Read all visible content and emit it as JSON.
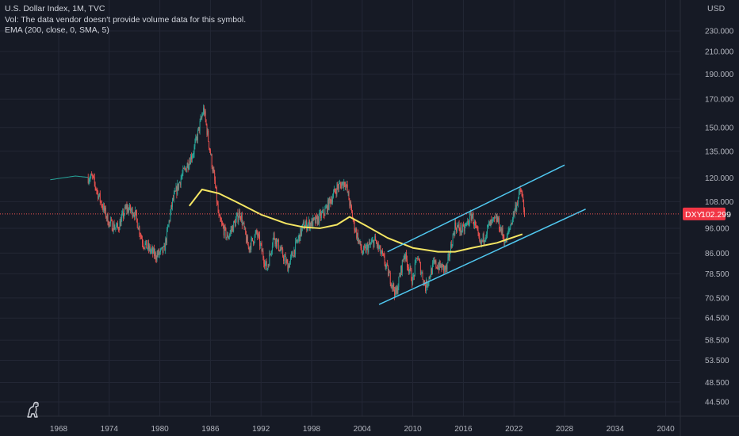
{
  "legend": {
    "title": "U.S. Dollar Index, 1M, TVC",
    "vol": "Vol: The data vendor doesn't provide volume data for this symbol.",
    "ema": "EMA (200, close, 0, SMA, 5)"
  },
  "currency": "USD",
  "price_tag": {
    "symbol": "DXY",
    "value": "102.299"
  },
  "colors": {
    "background": "#161a25",
    "grid": "#232735",
    "text": "#b2b5be",
    "candle_up": "#26a69a",
    "candle_down": "#ef5350",
    "ema": "#f5e663",
    "channel": "#50c8f0",
    "price_tag": "#f23645"
  },
  "icons": {
    "logo": "dino-logo-icon"
  },
  "chart_data": {
    "type": "candlestick",
    "title": "U.S. Dollar Index, 1M, TVC",
    "x_ticks": [
      "1968",
      "1974",
      "1980",
      "1986",
      "1992",
      "1998",
      "2004",
      "2010",
      "2016",
      "2022",
      "2028",
      "2034",
      "2040"
    ],
    "y_ticks": [
      "230.000",
      "210.000",
      "190.000",
      "170.000",
      "150.000",
      "135.000",
      "120.000",
      "108.000",
      "96.000",
      "86.000",
      "78.500",
      "70.500",
      "64.500",
      "58.500",
      "53.500",
      "48.500",
      "44.500"
    ],
    "y_scale": "log",
    "grid": true,
    "last_price": 102.299,
    "price_path": [
      [
        1967.0,
        119.0
      ],
      [
        1970.0,
        121.0
      ],
      [
        1972.0,
        120.0
      ],
      [
        1973.0,
        108.0
      ],
      [
        1974.0,
        98.0
      ],
      [
        1975.0,
        96.0
      ],
      [
        1976.0,
        105.0
      ],
      [
        1977.0,
        103.0
      ],
      [
        1978.0,
        90.0
      ],
      [
        1979.5,
        85.0
      ],
      [
        1980.5,
        87.0
      ],
      [
        1981.5,
        108.0
      ],
      [
        1982.5,
        120.0
      ],
      [
        1984.0,
        135.0
      ],
      [
        1985.2,
        163.0
      ],
      [
        1986.5,
        118.0
      ],
      [
        1987.0,
        100.0
      ],
      [
        1988.0,
        92.0
      ],
      [
        1989.5,
        103.0
      ],
      [
        1990.5,
        88.0
      ],
      [
        1991.5,
        94.0
      ],
      [
        1992.7,
        80.0
      ],
      [
        1993.5,
        93.0
      ],
      [
        1995.2,
        81.0
      ],
      [
        1997.0,
        97.0
      ],
      [
        1998.5,
        99.0
      ],
      [
        1999.5,
        103.0
      ],
      [
        2001.0,
        115.0
      ],
      [
        2002.0,
        118.0
      ],
      [
        2003.0,
        98.0
      ],
      [
        2004.0,
        86.0
      ],
      [
        2005.5,
        91.0
      ],
      [
        2006.5,
        84.0
      ],
      [
        2008.0,
        71.5
      ],
      [
        2009.0,
        86.0
      ],
      [
        2010.0,
        76.0
      ],
      [
        2010.5,
        85.0
      ],
      [
        2011.5,
        74.0
      ],
      [
        2012.5,
        82.0
      ],
      [
        2014.0,
        80.0
      ],
      [
        2015.0,
        97.0
      ],
      [
        2016.0,
        95.0
      ],
      [
        2017.0,
        102.0
      ],
      [
        2018.0,
        89.0
      ],
      [
        2019.0,
        97.0
      ],
      [
        2020.0,
        100.0
      ],
      [
        2021.0,
        90.0
      ],
      [
        2022.0,
        103.0
      ],
      [
        2022.8,
        114.0
      ],
      [
        2023.3,
        102.3
      ]
    ],
    "ema_200": [
      [
        1983.5,
        106.0
      ],
      [
        1985.0,
        114.0
      ],
      [
        1987.0,
        112.0
      ],
      [
        1989.0,
        108.0
      ],
      [
        1992.0,
        102.0
      ],
      [
        1995.0,
        98.0
      ],
      [
        1997.0,
        96.5
      ],
      [
        1999.0,
        96.0
      ],
      [
        2001.0,
        97.5
      ],
      [
        2002.5,
        101.0
      ],
      [
        2004.5,
        97.0
      ],
      [
        2007.0,
        92.0
      ],
      [
        2010.0,
        88.0
      ],
      [
        2013.0,
        86.5
      ],
      [
        2015.0,
        86.5
      ],
      [
        2017.0,
        88.0
      ],
      [
        2020.0,
        90.0
      ],
      [
        2023.0,
        93.5
      ]
    ],
    "channel": {
      "upper": [
        [
          2007.0,
          86.5
        ],
        [
          2028.0,
          127.0
        ]
      ],
      "lower": [
        [
          2006.0,
          68.5
        ],
        [
          2030.5,
          104.5
        ]
      ]
    }
  }
}
